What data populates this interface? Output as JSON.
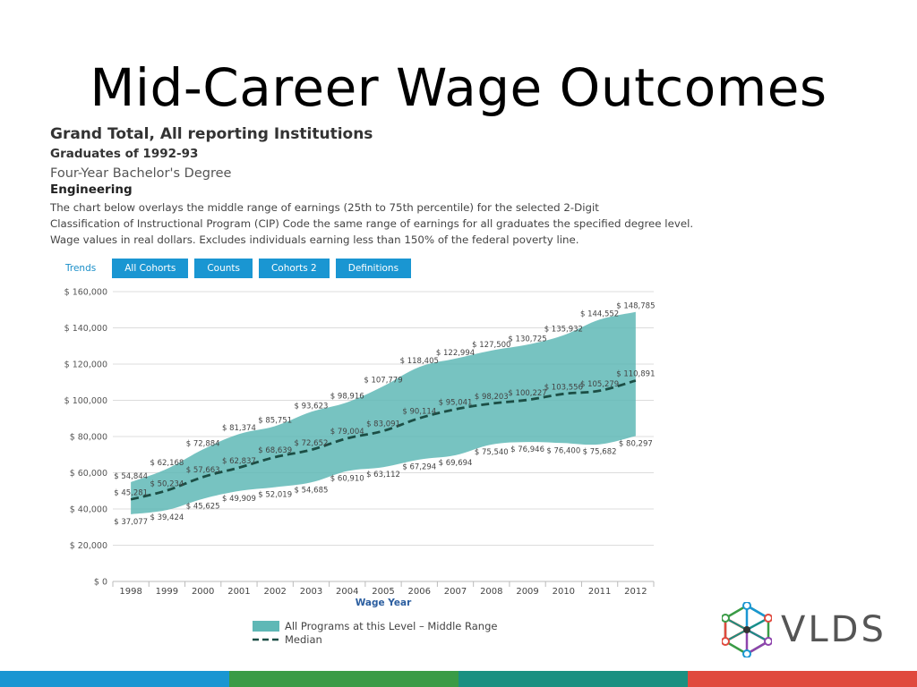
{
  "slide": {
    "title": "Mid-Career Wage Outcomes"
  },
  "report": {
    "heading": "Grand Total, All reporting Institutions",
    "cohort": "Graduates of 1992-93",
    "degree": "Four-Year Bachelor's Degree",
    "program": "Engineering",
    "description_lines": [
      "The chart below overlays the middle range of earnings (25th to 75th percentile) for the selected 2-Digit",
      "Classification of Instructional Program (CIP) Code the same range of earnings for all graduates the specified degree level.",
      "Wage values in real dollars. Excludes individuals earning less than 150% of the federal poverty line."
    ]
  },
  "tabs": {
    "trends_link": "Trends",
    "buttons": [
      "All Cohorts",
      "Counts",
      "Cohorts 2",
      "Definitions"
    ],
    "color": "#1a96d2"
  },
  "chart_data": {
    "type": "area",
    "xlabel": "Wage Year",
    "ylabel": "",
    "ylim": [
      0,
      160000
    ],
    "y_ticks": [
      0,
      20000,
      40000,
      60000,
      80000,
      100000,
      120000,
      140000,
      160000
    ],
    "y_tick_labels": [
      "$ 0",
      "$ 20,000",
      "$ 40,000",
      "$ 60,000",
      "$ 80,000",
      "$ 100,000",
      "$ 120,000",
      "$ 140,000",
      "$ 160,000"
    ],
    "categories": [
      "1998",
      "1999",
      "2000",
      "2001",
      "2002",
      "2003",
      "2004",
      "2005",
      "2006",
      "2007",
      "2008",
      "2009",
      "2010",
      "2011",
      "2012"
    ],
    "grid": true,
    "legend_position": "bottom",
    "series": [
      {
        "name": "All Programs at this Level - Middle Range",
        "type": "range",
        "color": "#5fb8b6",
        "low": [
          37077,
          39424,
          45625,
          49909,
          52019,
          54685,
          60910,
          63112,
          67294,
          69694,
          75540,
          76946,
          76400,
          75682,
          80297
        ],
        "high": [
          54844,
          62168,
          72884,
          81374,
          85751,
          93623,
          98916,
          107779,
          118405,
          122994,
          127500,
          130725,
          135932,
          144552,
          148785
        ],
        "low_labels": [
          "$ 37,077",
          "$ 39,424",
          "$ 45,625",
          "$ 49,909",
          "$ 52,019",
          "$ 54,685",
          "$ 60,910",
          "$ 63,112",
          "$ 67,294",
          "$ 69,694",
          "$ 75,540",
          "$ 76,946",
          "$ 76,400",
          "$ 75,682",
          "$ 80,297"
        ],
        "high_labels": [
          "$ 54,844",
          "$ 62,168",
          "$ 72,884",
          "$ 81,374",
          "$ 85,751",
          "$ 93,623",
          "$ 98,916",
          "$ 107,779",
          "$ 118,405",
          "$ 122,994",
          "$ 127,500",
          "$ 130,725",
          "$ 135,932",
          "$ 144,552",
          "$ 148,785"
        ]
      },
      {
        "name": "Median",
        "type": "line",
        "style": "dashed",
        "color": "#1c4e45",
        "values": [
          45281,
          50234,
          57663,
          62837,
          68639,
          72652,
          79004,
          83091,
          90114,
          95041,
          98203,
          100227,
          103556,
          105279,
          110891
        ],
        "labels": [
          "$ 45,281",
          "$ 50,234",
          "$ 57,663",
          "$ 62,837",
          "$ 68,639",
          "$ 72,652",
          "$ 79,004",
          "$ 83,091",
          "$ 90,114",
          "$ 95,041",
          "$ 98,203",
          "$ 100,227",
          "$ 103,556",
          "$ 105,279",
          "$ 110,891"
        ]
      }
    ]
  },
  "legend": {
    "range_label": "All Programs at this Level – Middle Range",
    "median_label": "Median"
  },
  "logo": {
    "text": "VLDS"
  },
  "footer_colors": [
    "#1a96d2",
    "#3a9b46",
    "#1a9081",
    "#e04a3e"
  ]
}
